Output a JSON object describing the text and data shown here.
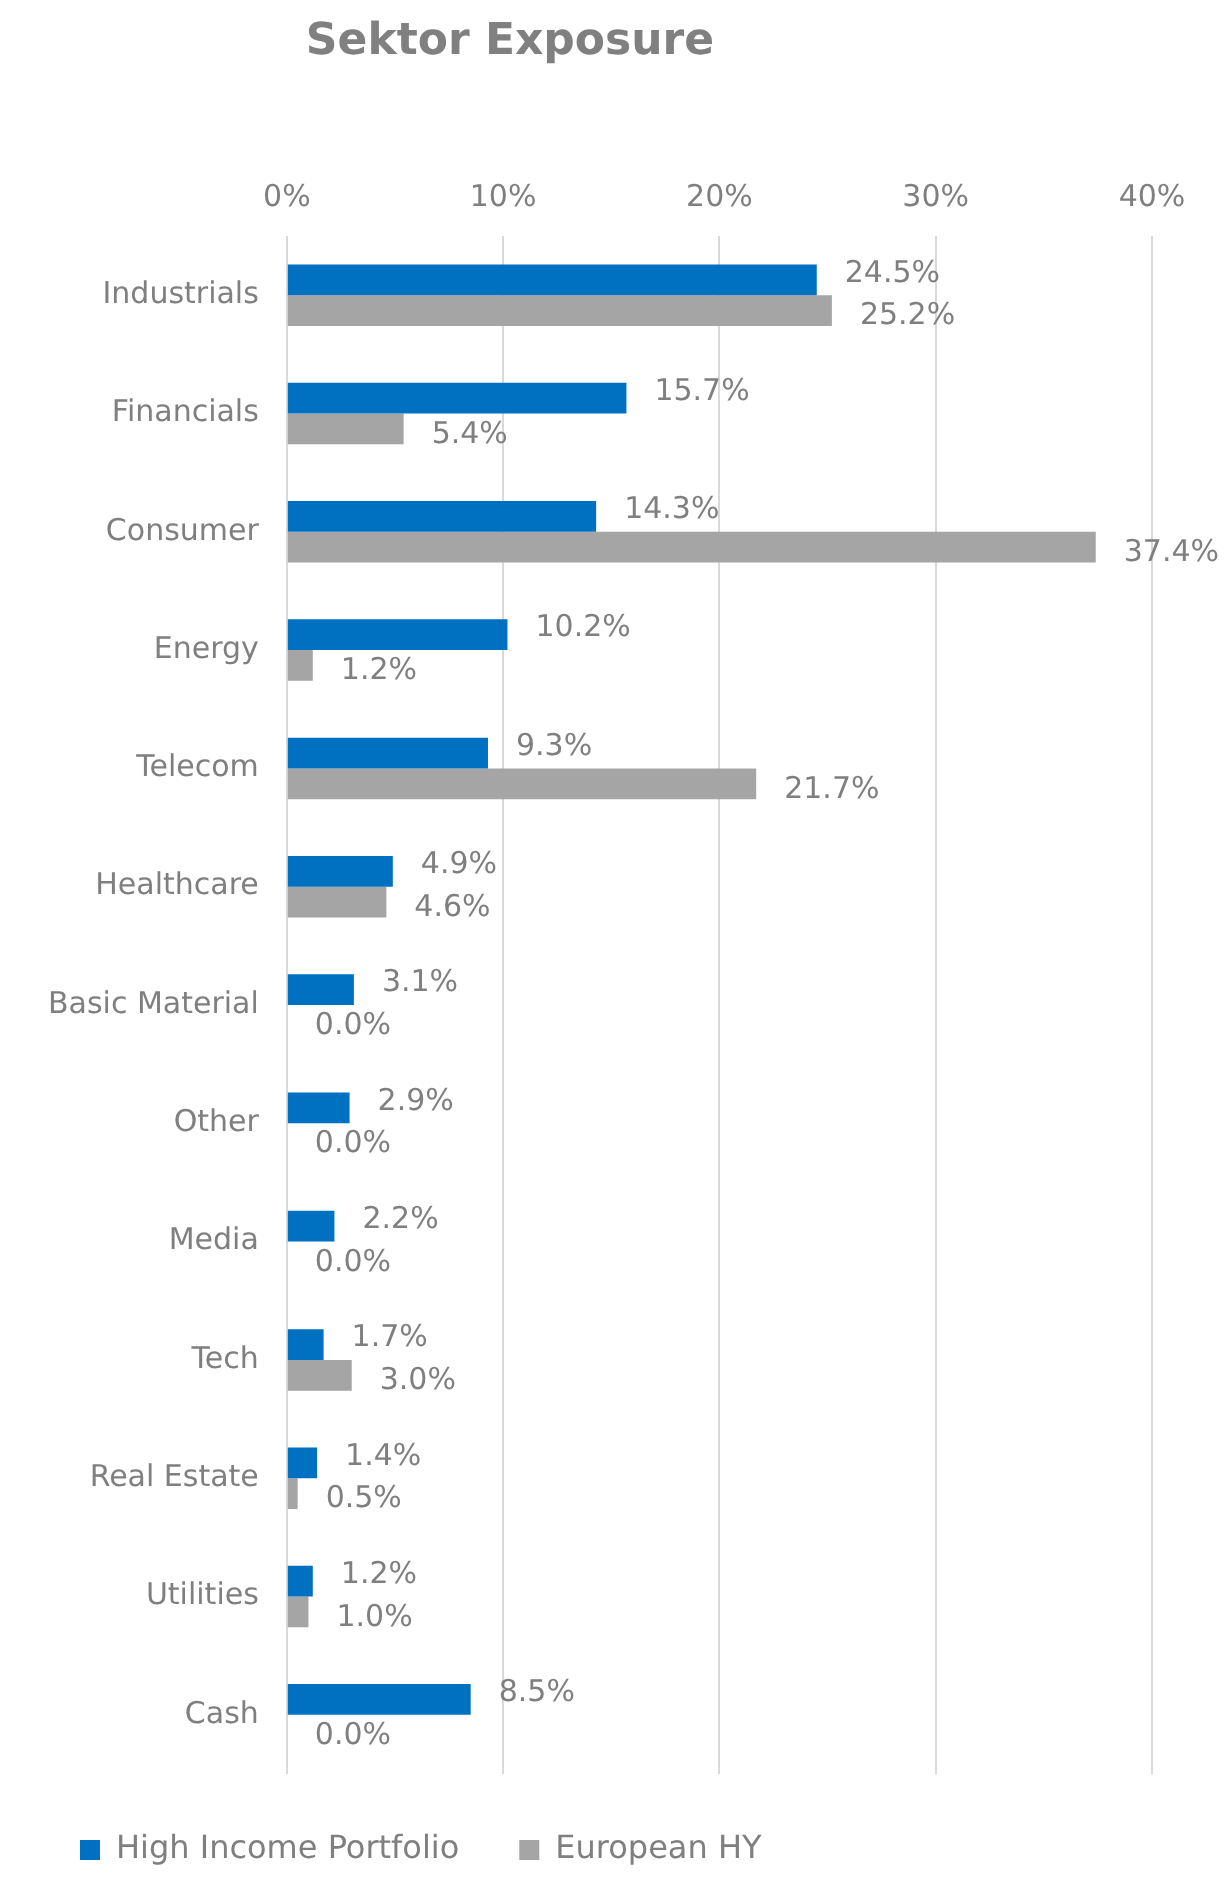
{
  "chart_data": {
    "type": "bar",
    "title": "Sektor Exposure",
    "orientation": "horizontal",
    "categories": [
      "Industrials",
      "Financials",
      "Consumer",
      "Energy",
      "Telecom",
      "Healthcare",
      "Basic Material",
      "Other",
      "Media",
      "Tech",
      "Real Estate",
      "Utilities",
      "Cash"
    ],
    "series": [
      {
        "name": "High Income Portfolio",
        "color": "#0070c0",
        "values": [
          24.5,
          15.7,
          14.3,
          10.2,
          9.3,
          4.9,
          3.1,
          2.9,
          2.2,
          1.7,
          1.4,
          1.2,
          8.5
        ],
        "value_labels": [
          "24.5%",
          "15.7%",
          "14.3%",
          "10.2%",
          "9.3%",
          "4.9%",
          "3.1%",
          "2.9%",
          "2.2%",
          "1.7%",
          "1.4%",
          "1.2%",
          "8.5%"
        ]
      },
      {
        "name": "European HY",
        "color": "#a5a5a5",
        "values": [
          25.2,
          5.4,
          37.4,
          1.2,
          21.7,
          4.6,
          0.0,
          0.0,
          0.0,
          3.0,
          0.5,
          1.0,
          0.0
        ],
        "value_labels": [
          "25.2%",
          "5.4%",
          "37.4%",
          "1.2%",
          "21.7%",
          "4.6%",
          "0.0%",
          "0.0%",
          "0.0%",
          "3.0%",
          "0.5%",
          "1.0%",
          "0.0%"
        ]
      }
    ],
    "xlim": [
      0,
      40
    ],
    "xticks": [
      {
        "value": 0,
        "label": "0%"
      },
      {
        "value": 10,
        "label": "10%"
      },
      {
        "value": 20,
        "label": "20%"
      },
      {
        "value": 30,
        "label": "30%"
      },
      {
        "value": 40,
        "label": "40%"
      }
    ],
    "grid": "x",
    "legend": "bottom"
  }
}
